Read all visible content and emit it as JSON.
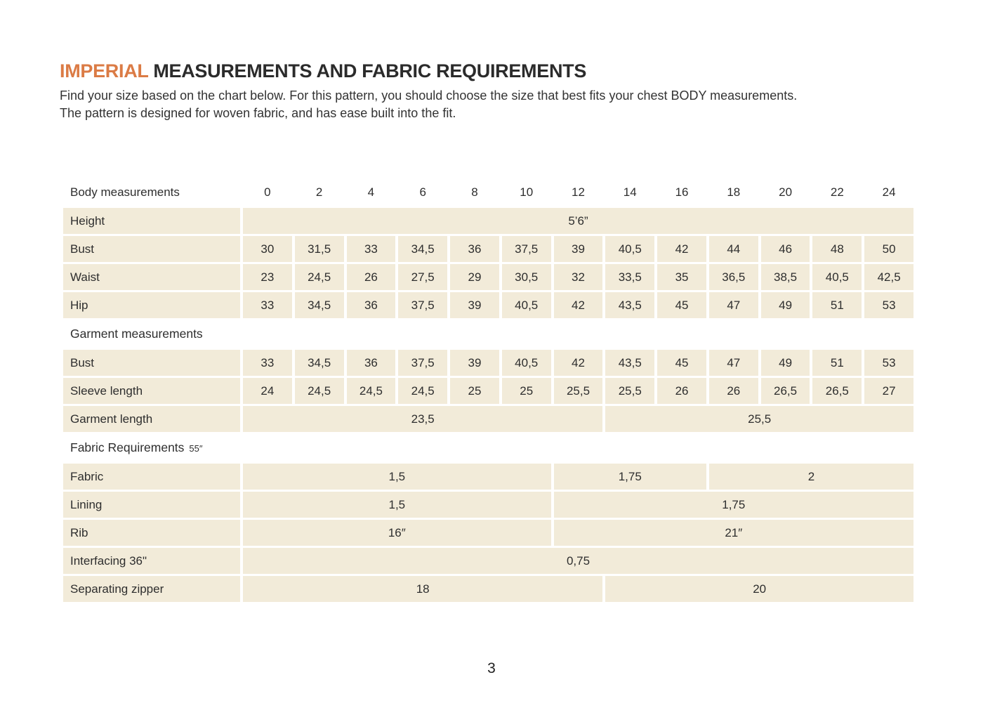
{
  "page": {
    "title": {
      "highlight": "IMPERIAL",
      "rest": " MEASUREMENTS AND FABRIC REQUIREMENTS"
    },
    "intro": {
      "line1": "Find your size based on the chart below. For this pattern, you should choose the size that best fits your chest BODY measurements.",
      "line2": "The pattern is designed for woven fabric, and has ease built into the fit."
    },
    "page_number": "3"
  },
  "colors": {
    "accent": "#DB7B45",
    "cell_background": "#F2EBD9",
    "text": "#2E2E2E"
  },
  "table": {
    "rows": [
      {
        "kind": "header",
        "name": "body-measurements-header",
        "label": "Body measurements",
        "cells": [
          {
            "v": "0"
          },
          {
            "v": "2"
          },
          {
            "v": "4"
          },
          {
            "v": "6"
          },
          {
            "v": "8"
          },
          {
            "v": "10"
          },
          {
            "v": "12"
          },
          {
            "v": "14"
          },
          {
            "v": "16"
          },
          {
            "v": "18"
          },
          {
            "v": "20"
          },
          {
            "v": "22"
          },
          {
            "v": "24"
          }
        ]
      },
      {
        "kind": "data",
        "name": "height",
        "label": "Height",
        "cells": [
          {
            "v": "5’6”",
            "span": 13
          }
        ]
      },
      {
        "kind": "data",
        "name": "body-bust",
        "label": "Bust",
        "cells": [
          {
            "v": "30"
          },
          {
            "v": "31,5"
          },
          {
            "v": "33"
          },
          {
            "v": "34,5"
          },
          {
            "v": "36"
          },
          {
            "v": "37,5"
          },
          {
            "v": "39"
          },
          {
            "v": "40,5"
          },
          {
            "v": "42"
          },
          {
            "v": "44"
          },
          {
            "v": "46"
          },
          {
            "v": "48"
          },
          {
            "v": "50"
          }
        ]
      },
      {
        "kind": "data",
        "name": "waist",
        "label": "Waist",
        "cells": [
          {
            "v": "23"
          },
          {
            "v": "24,5"
          },
          {
            "v": "26"
          },
          {
            "v": "27,5"
          },
          {
            "v": "29"
          },
          {
            "v": "30,5"
          },
          {
            "v": "32"
          },
          {
            "v": "33,5"
          },
          {
            "v": "35"
          },
          {
            "v": "36,5"
          },
          {
            "v": "38,5"
          },
          {
            "v": "40,5"
          },
          {
            "v": "42,5"
          }
        ]
      },
      {
        "kind": "data",
        "name": "hip",
        "label": "Hip",
        "cells": [
          {
            "v": "33"
          },
          {
            "v": "34,5"
          },
          {
            "v": "36"
          },
          {
            "v": "37,5"
          },
          {
            "v": "39"
          },
          {
            "v": "40,5"
          },
          {
            "v": "42"
          },
          {
            "v": "43,5"
          },
          {
            "v": "45"
          },
          {
            "v": "47"
          },
          {
            "v": "49"
          },
          {
            "v": "51"
          },
          {
            "v": "53"
          }
        ]
      },
      {
        "kind": "section",
        "name": "garment-measurements",
        "label": "Garment measurements",
        "suffix": ""
      },
      {
        "kind": "data",
        "name": "garment-bust",
        "label": "Bust",
        "cells": [
          {
            "v": "33"
          },
          {
            "v": "34,5"
          },
          {
            "v": "36"
          },
          {
            "v": "37,5"
          },
          {
            "v": "39"
          },
          {
            "v": "40,5"
          },
          {
            "v": "42"
          },
          {
            "v": "43,5"
          },
          {
            "v": "45"
          },
          {
            "v": "47"
          },
          {
            "v": "49"
          },
          {
            "v": "51"
          },
          {
            "v": "53"
          }
        ]
      },
      {
        "kind": "data",
        "name": "sleeve-length",
        "label": "Sleeve length",
        "cells": [
          {
            "v": "24"
          },
          {
            "v": "24,5"
          },
          {
            "v": "24,5"
          },
          {
            "v": "24,5"
          },
          {
            "v": "25"
          },
          {
            "v": "25"
          },
          {
            "v": "25,5"
          },
          {
            "v": "25,5"
          },
          {
            "v": "26"
          },
          {
            "v": "26"
          },
          {
            "v": "26,5"
          },
          {
            "v": "26,5"
          },
          {
            "v": "27"
          }
        ]
      },
      {
        "kind": "data",
        "name": "garment-length",
        "label": "Garment length",
        "cells": [
          {
            "v": "23,5",
            "span": 7
          },
          {
            "v": "25,5",
            "span": 6
          }
        ]
      },
      {
        "kind": "section",
        "name": "fabric-requirements",
        "label": "Fabric Requirements",
        "suffix": "55″"
      },
      {
        "kind": "data",
        "name": "fabric",
        "label": "Fabric",
        "cells": [
          {
            "v": "1,5",
            "span": 6
          },
          {
            "v": "1,75",
            "span": 3
          },
          {
            "v": "2",
            "span": 4
          }
        ]
      },
      {
        "kind": "data",
        "name": "lining",
        "label": "Lining",
        "cells": [
          {
            "v": "1,5",
            "span": 6
          },
          {
            "v": "1,75",
            "span": 7
          }
        ]
      },
      {
        "kind": "data",
        "name": "rib",
        "label": "Rib",
        "cells": [
          {
            "v": "16″",
            "span": 6
          },
          {
            "v": "21″",
            "span": 7
          }
        ]
      },
      {
        "kind": "data",
        "name": "interfacing",
        "label": "Interfacing 36\"",
        "cells": [
          {
            "v": "0,75",
            "span": 13
          }
        ]
      },
      {
        "kind": "data",
        "name": "separating-zipper",
        "label": "Separating zipper",
        "cells": [
          {
            "v": "18",
            "span": 7
          },
          {
            "v": "20",
            "span": 6
          }
        ]
      }
    ]
  }
}
